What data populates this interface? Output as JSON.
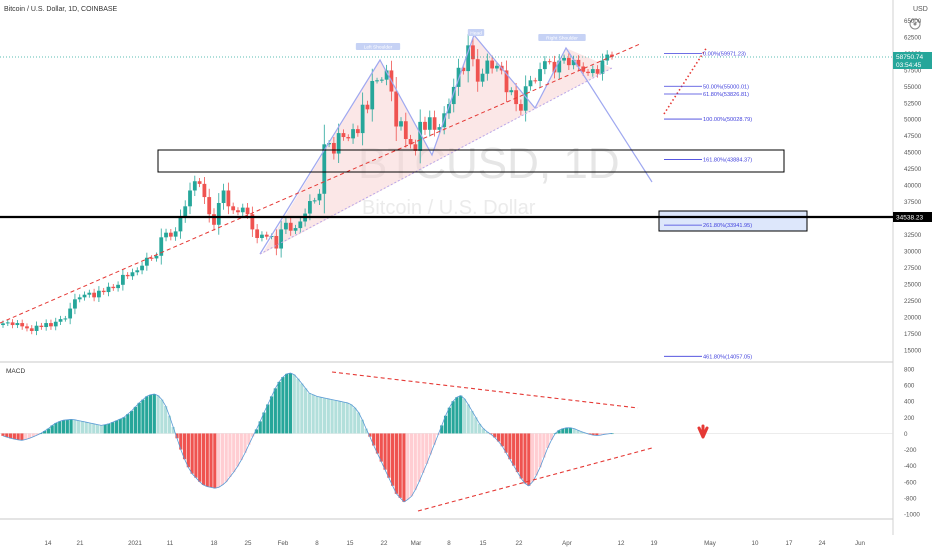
{
  "header": {
    "title": "Bitcoin / U.S. Dollar, 1D, COINBASE",
    "currency": "USD"
  },
  "watermark": {
    "symbol": "BTCUSD, 1D",
    "name": "Bitcoin / U.S. Dollar"
  },
  "colors": {
    "up": "#26a69a",
    "down": "#ef5350",
    "fib": "#3f3fdc",
    "pattern": "#9fa8f0",
    "trend": "#e53935",
    "zone_fill": "#dde7fb",
    "price_label": "#26a69a"
  },
  "chart_data": [
    {
      "type": "candlestick",
      "title": "",
      "ylim": [
        13500,
        65500
      ],
      "y_ticks": [
        "15000",
        "17500",
        "20000",
        "22500",
        "25000",
        "27500",
        "30000",
        "32500",
        "35000",
        "37500",
        "40000",
        "42500",
        "45000",
        "47500",
        "50000",
        "52500",
        "55000",
        "57500",
        "60000",
        "62500",
        "65000"
      ],
      "x_ticks": [
        "14",
        "21",
        "2021",
        "11",
        "18",
        "25",
        "Feb",
        "8",
        "15",
        "22",
        "Mar",
        "8",
        "15",
        "22",
        "Apr",
        "12",
        "19",
        "May",
        "10",
        "17",
        "24",
        "Jun"
      ],
      "series": [
        {
          "close": [
            19050,
            19200,
            18800,
            19100,
            18600,
            18300,
            17900,
            18700,
            18500,
            19100,
            18600,
            19300,
            19700,
            19800,
            21300,
            22700,
            23000,
            23400,
            23700,
            23000,
            24000,
            23800,
            24600,
            24400,
            24900,
            26400,
            26200,
            26800,
            27100,
            27800,
            29000,
            28900,
            29300,
            32100,
            32800,
            32200,
            33000,
            35200,
            36800,
            39200,
            40600,
            40200,
            38200,
            35600,
            34000,
            37300,
            39200,
            36800,
            36200,
            35900,
            36600,
            35600,
            33300,
            32000,
            32500,
            32200,
            32300,
            30400,
            33300,
            34300,
            33100,
            33500,
            34500,
            35700,
            37600,
            37700,
            38700,
            46200,
            46400,
            44800,
            47900,
            47300,
            47100,
            48500,
            47900,
            52200,
            51500,
            55800,
            55900,
            56000,
            57400,
            54200,
            48900,
            49700,
            47000,
            46200,
            45200,
            49600,
            48400,
            50300,
            48400,
            48800,
            50900,
            52300,
            54900,
            57800,
            57300,
            61200,
            59100,
            55700,
            56900,
            58900,
            57700,
            58100,
            57400,
            54100,
            54400,
            52300,
            51300,
            55000,
            55900,
            55800,
            57600,
            58800,
            58700,
            57100,
            58900,
            59300,
            58200,
            59000,
            58000,
            57200,
            57000,
            57600,
            56900,
            58900,
            59800,
            59500
          ]
        },
        {
          "open": [
            18800,
            19050,
            19200,
            18800,
            19100,
            18600,
            18300,
            17900,
            18700,
            18500,
            19100,
            18600,
            19300,
            19700,
            19800,
            21300,
            22700,
            23000,
            23400,
            23700,
            23000,
            24000,
            23800,
            24600,
            24400,
            24900,
            26400,
            26200,
            26800,
            27100,
            27800,
            29000,
            28900,
            29300,
            32100,
            32800,
            32200,
            33000,
            35200,
            36800,
            39200,
            40600,
            40200,
            38200,
            35600,
            34000,
            37300,
            39200,
            36800,
            36200,
            35900,
            36600,
            35600,
            33300,
            32000,
            32500,
            32200,
            32300,
            30400,
            33300,
            34300,
            33100,
            33500,
            34500,
            35700,
            37600,
            37700,
            38700,
            46200,
            46400,
            44800,
            47900,
            47300,
            47100,
            48500,
            47900,
            52200,
            51500,
            55800,
            55900,
            56000,
            57400,
            54200,
            48900,
            49700,
            47000,
            46200,
            45200,
            49600,
            48400,
            50300,
            48400,
            48800,
            50900,
            52300,
            54900,
            57800,
            57300,
            61200,
            59100,
            55700,
            56900,
            58900,
            57700,
            58100,
            57400,
            54100,
            54400,
            52300,
            51300,
            55000,
            55900,
            55800,
            57600,
            58800,
            58700,
            57100,
            58900,
            59300,
            58200,
            59000,
            58000,
            57200,
            57000,
            57600,
            56900,
            58900,
            59800
          ]
        }
      ],
      "last_price": "58750.74",
      "countdown": "03:54:45",
      "level_price": "34538.23",
      "pattern_labels": [
        "Left Shoulder",
        "Head",
        "Right Shoulder"
      ],
      "fib_levels": [
        {
          "label": "0.00%(59971.23)",
          "value": 59971.23
        },
        {
          "label": "50.00%(55000.01)",
          "value": 55000.01
        },
        {
          "label": "61.80%(53826.81)",
          "value": 53826.81
        },
        {
          "label": "100.00%(50028.79)",
          "value": 50028.79
        },
        {
          "label": "161.80%(43884.37)",
          "value": 43884.37
        },
        {
          "label": "261.80%(33941.95)",
          "value": 33941.95
        },
        {
          "label": "461.80%(14057.05)",
          "value": 14057.05
        }
      ]
    },
    {
      "type": "bar",
      "title": "MACD",
      "ylim": [
        -1050,
        850
      ],
      "y_ticks": [
        "800",
        "600",
        "400",
        "200",
        "0",
        "-200",
        "-400",
        "-600",
        "-800",
        "-1000"
      ],
      "values": [
        -30,
        -45,
        -60,
        -70,
        -80,
        -85,
        -75,
        -60,
        -40,
        -20,
        0,
        30,
        60,
        100,
        130,
        150,
        165,
        170,
        175,
        170,
        160,
        150,
        140,
        130,
        120,
        110,
        100,
        110,
        120,
        140,
        160,
        180,
        200,
        240,
        280,
        330,
        380,
        420,
        460,
        480,
        490,
        470,
        420,
        340,
        220,
        80,
        -60,
        -200,
        -320,
        -420,
        -500,
        -550,
        -600,
        -640,
        -660,
        -670,
        -680,
        -670,
        -640,
        -600,
        -540,
        -480,
        -410,
        -330,
        -240,
        -140,
        -40,
        50,
        150,
        260,
        360,
        460,
        560,
        640,
        700,
        740,
        750,
        730,
        680,
        620,
        560,
        500,
        480,
        460,
        450,
        440,
        430,
        420,
        410,
        400,
        390,
        380,
        360,
        320,
        260,
        170,
        60,
        -40,
        -150,
        -250,
        -350,
        -450,
        -550,
        -650,
        -750,
        -800,
        -850,
        -820,
        -780,
        -700,
        -600,
        -490,
        -380,
        -260,
        -140,
        -20,
        100,
        220,
        320,
        400,
        450,
        470,
        430,
        360,
        280,
        200,
        120,
        60,
        20,
        -10,
        -50,
        -100,
        -160,
        -240,
        -320,
        -400,
        -480,
        -560,
        -620,
        -650,
        -600,
        -520,
        -420,
        -300,
        -180,
        -80,
        0,
        40,
        60,
        70,
        70,
        60,
        40,
        20,
        5,
        -10,
        -20,
        -25,
        -20,
        -10,
        -5,
        0
      ]
    }
  ]
}
